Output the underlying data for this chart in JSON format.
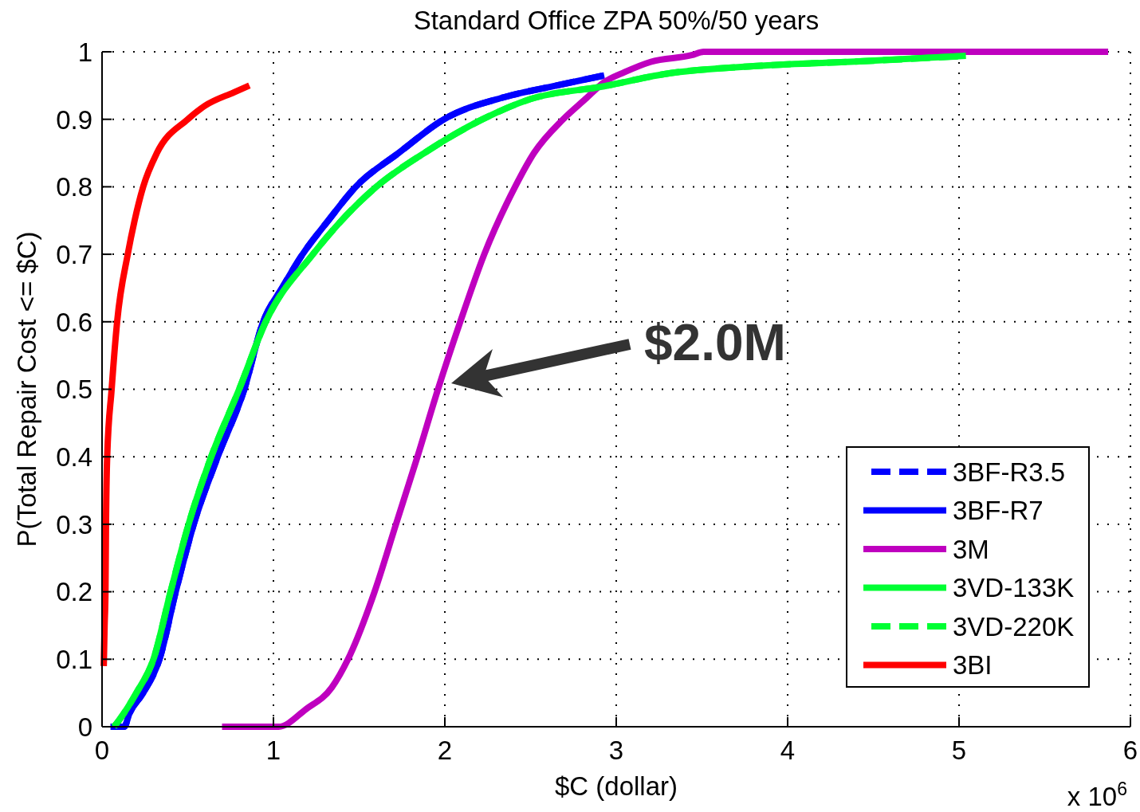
{
  "chart_data": {
    "type": "line",
    "title": "Standard Office ZPA 50%/50 years",
    "xlabel": "$C (dollar)",
    "ylabel": "P(Total Repair Cost <= $C)",
    "xlim": [
      0,
      6
    ],
    "xticks": [
      0,
      1,
      2,
      3,
      4,
      5,
      6
    ],
    "ylim": [
      0,
      1
    ],
    "yticks": [
      0,
      0.1,
      0.2,
      0.3,
      0.4,
      0.5,
      0.6,
      0.7,
      0.8,
      0.9,
      1
    ],
    "grid": true,
    "legend": "bottom right",
    "annotations": [
      "$2.0M",
      "x 10$^{6}$"
    ],
    "series": [
      {
        "name": "3BF-R3.5",
        "color": "#0000ff",
        "line_style": "dashed",
        "x": [
          0.05,
          0.13,
          0.16,
          0.24,
          0.335,
          0.43,
          0.535,
          0.675,
          0.83,
          0.94,
          1.05,
          1.17,
          1.32,
          1.48,
          1.73,
          1.995,
          2.35,
          2.65,
          2.93
        ],
        "values": [
          0,
          0,
          0.02,
          0.05,
          0.1,
          0.2,
          0.3,
          0.4,
          0.5,
          0.6,
          0.65,
          0.7,
          0.75,
          0.8,
          0.85,
          0.9,
          0.933,
          0.95,
          0.965
        ]
      },
      {
        "name": "3BF-R7",
        "color": "#0000ff",
        "line_style": "solid",
        "x": [
          0.05,
          0.13,
          0.16,
          0.24,
          0.335,
          0.43,
          0.535,
          0.675,
          0.83,
          0.94,
          1.05,
          1.17,
          1.32,
          1.48,
          1.73,
          1.995,
          2.35,
          2.65,
          2.93
        ],
        "values": [
          0,
          0,
          0.02,
          0.05,
          0.1,
          0.2,
          0.3,
          0.4,
          0.5,
          0.6,
          0.65,
          0.7,
          0.75,
          0.8,
          0.85,
          0.9,
          0.933,
          0.95,
          0.965
        ]
      },
      {
        "name": "3M",
        "color": "#bf00bf",
        "line_style": "solid",
        "x": [
          0.7,
          1.03,
          1.19,
          1.34,
          1.435,
          1.59,
          1.715,
          1.84,
          1.96,
          2.09,
          2.23,
          2.41,
          2.52,
          2.69,
          2.82,
          2.93,
          3.05,
          3.2,
          3.44,
          3.51,
          5.87
        ],
        "values": [
          0,
          0,
          0.026,
          0.058,
          0.1,
          0.2,
          0.3,
          0.4,
          0.5,
          0.6,
          0.7,
          0.8,
          0.85,
          0.9,
          0.93,
          0.955,
          0.97,
          0.985,
          0.995,
          1,
          1
        ]
      },
      {
        "name": "3VD-133K",
        "color": "#00ff33",
        "line_style": "solid",
        "x": [
          0.07,
          0.1,
          0.2,
          0.3,
          0.4,
          0.505,
          0.637,
          0.8,
          0.955,
          1.23,
          1.6,
          1.88,
          2.22,
          2.5,
          2.93,
          3.28,
          3.82,
          4.44,
          5.04
        ],
        "values": [
          0,
          0.01,
          0.05,
          0.1,
          0.2,
          0.3,
          0.4,
          0.5,
          0.6,
          0.7,
          0.8,
          0.85,
          0.9,
          0.93,
          0.949,
          0.967,
          0.979,
          0.986,
          0.994
        ]
      },
      {
        "name": "3VD-220K",
        "color": "#00ff33",
        "line_style": "dashed",
        "x": [
          0.07,
          0.1,
          0.2,
          0.3,
          0.4,
          0.505,
          0.637,
          0.8,
          0.955,
          1.23,
          1.6,
          1.88,
          2.22,
          2.5,
          2.93,
          3.28,
          3.82,
          4.44,
          5.04
        ],
        "values": [
          0,
          0.01,
          0.05,
          0.1,
          0.2,
          0.3,
          0.4,
          0.5,
          0.6,
          0.7,
          0.8,
          0.85,
          0.9,
          0.93,
          0.949,
          0.967,
          0.979,
          0.986,
          0.994
        ]
      },
      {
        "name": "3BI",
        "color": "#ff0000",
        "line_style": "solid",
        "x": [
          0.01,
          0.015,
          0.02,
          0.023,
          0.03,
          0.056,
          0.088,
          0.15,
          0.19,
          0.24,
          0.32,
          0.5,
          0.6,
          0.77,
          0.86
        ],
        "values": [
          0.09,
          0.15,
          0.2,
          0.3,
          0.4,
          0.5,
          0.6,
          0.7,
          0.75,
          0.8,
          0.85,
          0.9,
          0.92,
          0.94,
          0.95
        ]
      }
    ]
  }
}
